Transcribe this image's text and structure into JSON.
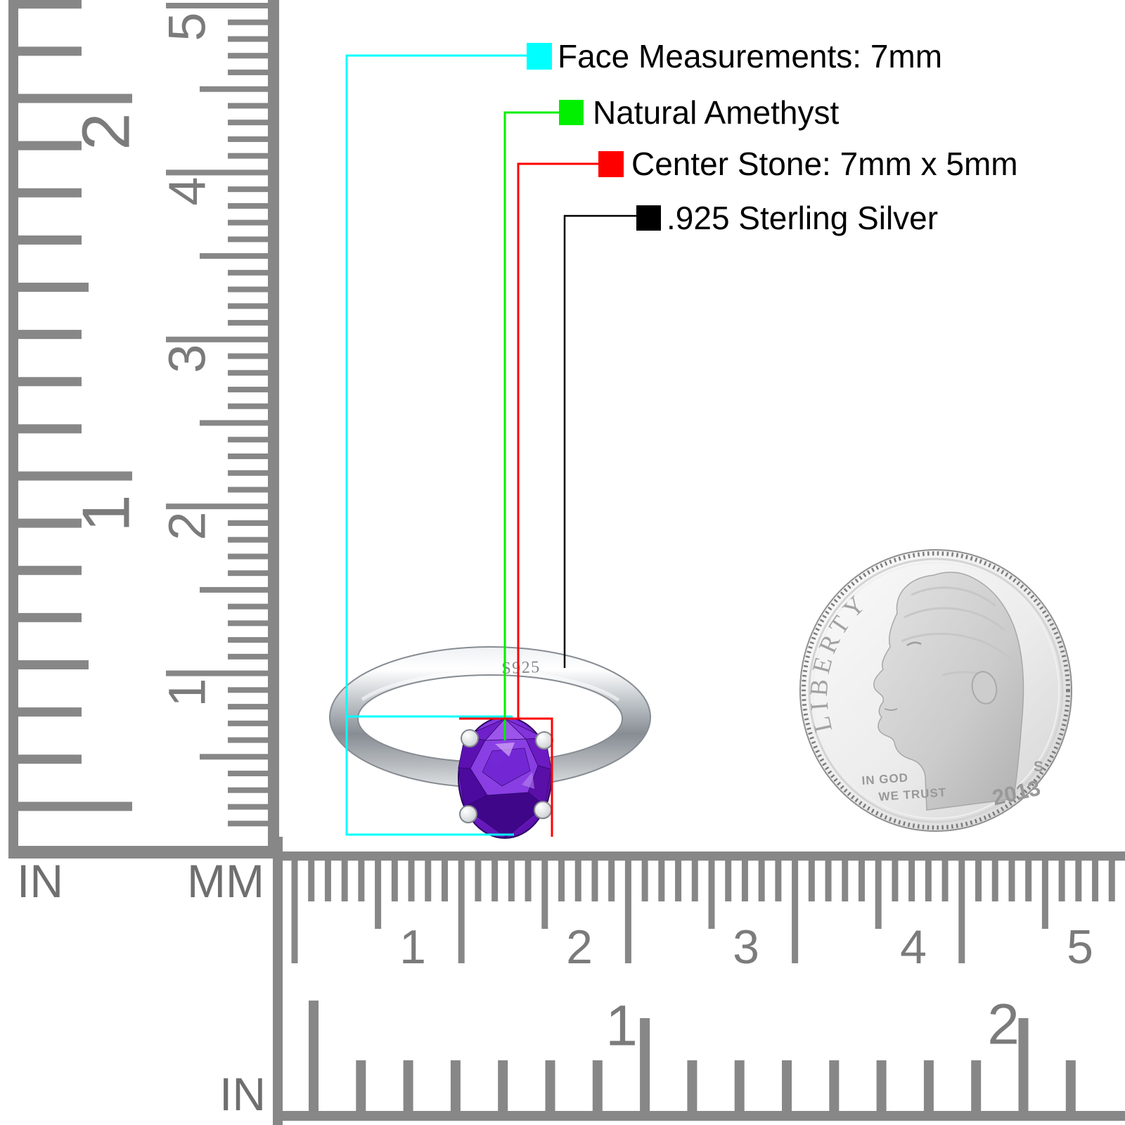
{
  "legend": {
    "items": [
      {
        "label": "Face Measurements: 7mm",
        "color": "#00ffff"
      },
      {
        "label": "Natural Amethyst",
        "color": "#00f000"
      },
      {
        "label": "Center Stone: 7mm x 5mm",
        "color": "#ff0000"
      },
      {
        "label": ".925 Sterling Silver",
        "color": "#000000"
      }
    ]
  },
  "ring": {
    "engraving": "S925"
  },
  "coin": {
    "liberty": "LIBERTY",
    "motto_line1": "IN GOD",
    "motto_line2": "WE TRUST",
    "mint_mark": "S",
    "year": "2013"
  },
  "rulers": {
    "left": {
      "in_label": "IN",
      "mm_label": "MM",
      "in_numbers": [
        "2",
        "1"
      ],
      "mm_numbers": [
        "5",
        "4",
        "3",
        "2",
        "1"
      ]
    },
    "bottom": {
      "in_label": "IN",
      "mm_numbers": [
        "1",
        "2",
        "3",
        "4",
        "5"
      ],
      "in_numbers": [
        "1",
        "2"
      ]
    }
  }
}
